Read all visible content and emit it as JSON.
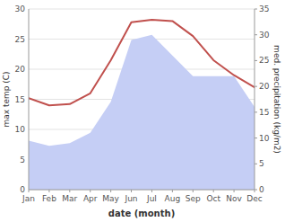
{
  "chart_data": {
    "type": "line",
    "categories": [
      "Jan",
      "Feb",
      "Mar",
      "Apr",
      "May",
      "Jun",
      "Jul",
      "Aug",
      "Sep",
      "Oct",
      "Nov",
      "Dec"
    ],
    "xlabel": "date (month)",
    "ylabel": "max temp (C)",
    "y2label": "med. precipitation (kg/m2)",
    "ylim": [
      0,
      30
    ],
    "yticks": [
      0,
      5,
      10,
      15,
      20,
      25,
      30
    ],
    "y2lim": [
      0,
      35
    ],
    "y2ticks": [
      0,
      5,
      10,
      15,
      20,
      25,
      30,
      35
    ],
    "grid": true,
    "series": [
      {
        "type": "area",
        "axis": "y2",
        "color": "#c5cef5",
        "values": [
          9.5,
          8.5,
          9.0,
          11.0,
          17.0,
          29.0,
          30.0,
          26.0,
          22.0,
          22.0,
          22.0,
          16.0
        ]
      },
      {
        "type": "line",
        "color": "#c0504d",
        "values": [
          15.2,
          14.0,
          14.2,
          16.0,
          21.5,
          27.8,
          28.2,
          28.0,
          25.5,
          21.5,
          19.0,
          17.0
        ]
      }
    ]
  }
}
